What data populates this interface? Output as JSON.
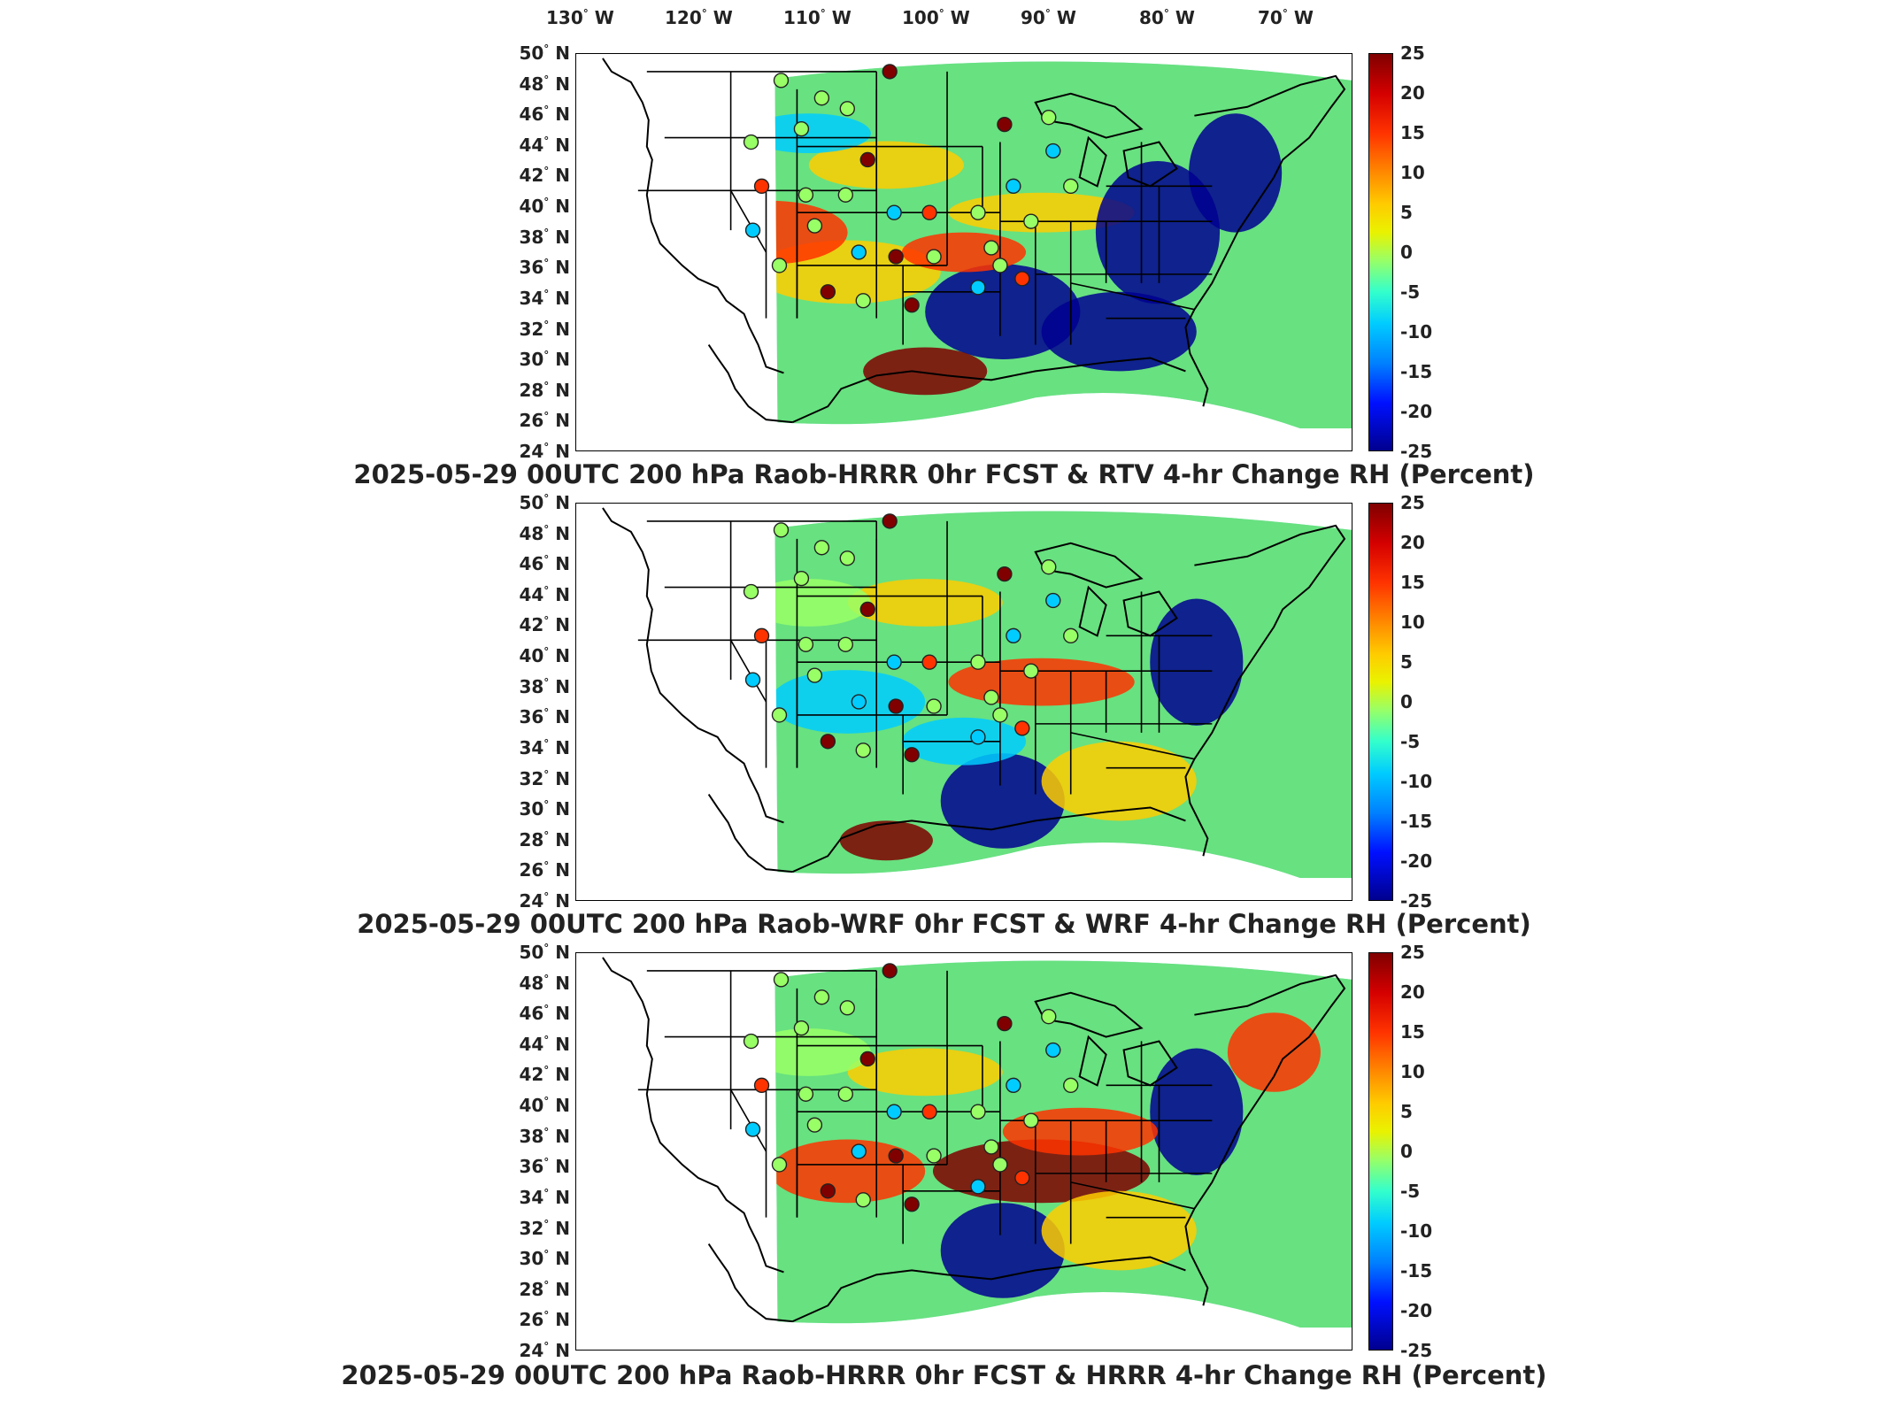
{
  "lon_labels": [
    "130",
    "120",
    "110",
    "100",
    "90",
    "80",
    "70"
  ],
  "lon_unit": "W",
  "lat_labels": [
    "50",
    "48",
    "46",
    "44",
    "42",
    "40",
    "38",
    "36",
    "34",
    "32",
    "30",
    "28",
    "26",
    "24"
  ],
  "lat_unit": "N",
  "colorbar_ticks": [
    "25",
    "20",
    "15",
    "10",
    "5",
    "0",
    "-5",
    "-10",
    "-15",
    "-20",
    "-25"
  ],
  "colors": {
    "scale_high": "#800000",
    "scale_mid_high": "#ff3300",
    "scale_warm": "#ffcc00",
    "scale_zero": "#99ff66",
    "scale_cool": "#00ccff",
    "scale_low": "#00008f"
  },
  "panels": [
    {
      "title": "2025-05-29 00UTC 200 hPa Raob-HRRR 0hr FCST & RTV 4-hr Change RH (Percent)"
    },
    {
      "title": "2025-05-29 00UTC 200 hPa Raob-WRF 0hr FCST & WRF 4-hr Change RH (Percent)"
    },
    {
      "title": "2025-05-29 00UTC 200 hPa Raob-HRRR 0hr FCST & HRRR 4-hr Change RH (Percent)"
    }
  ]
}
